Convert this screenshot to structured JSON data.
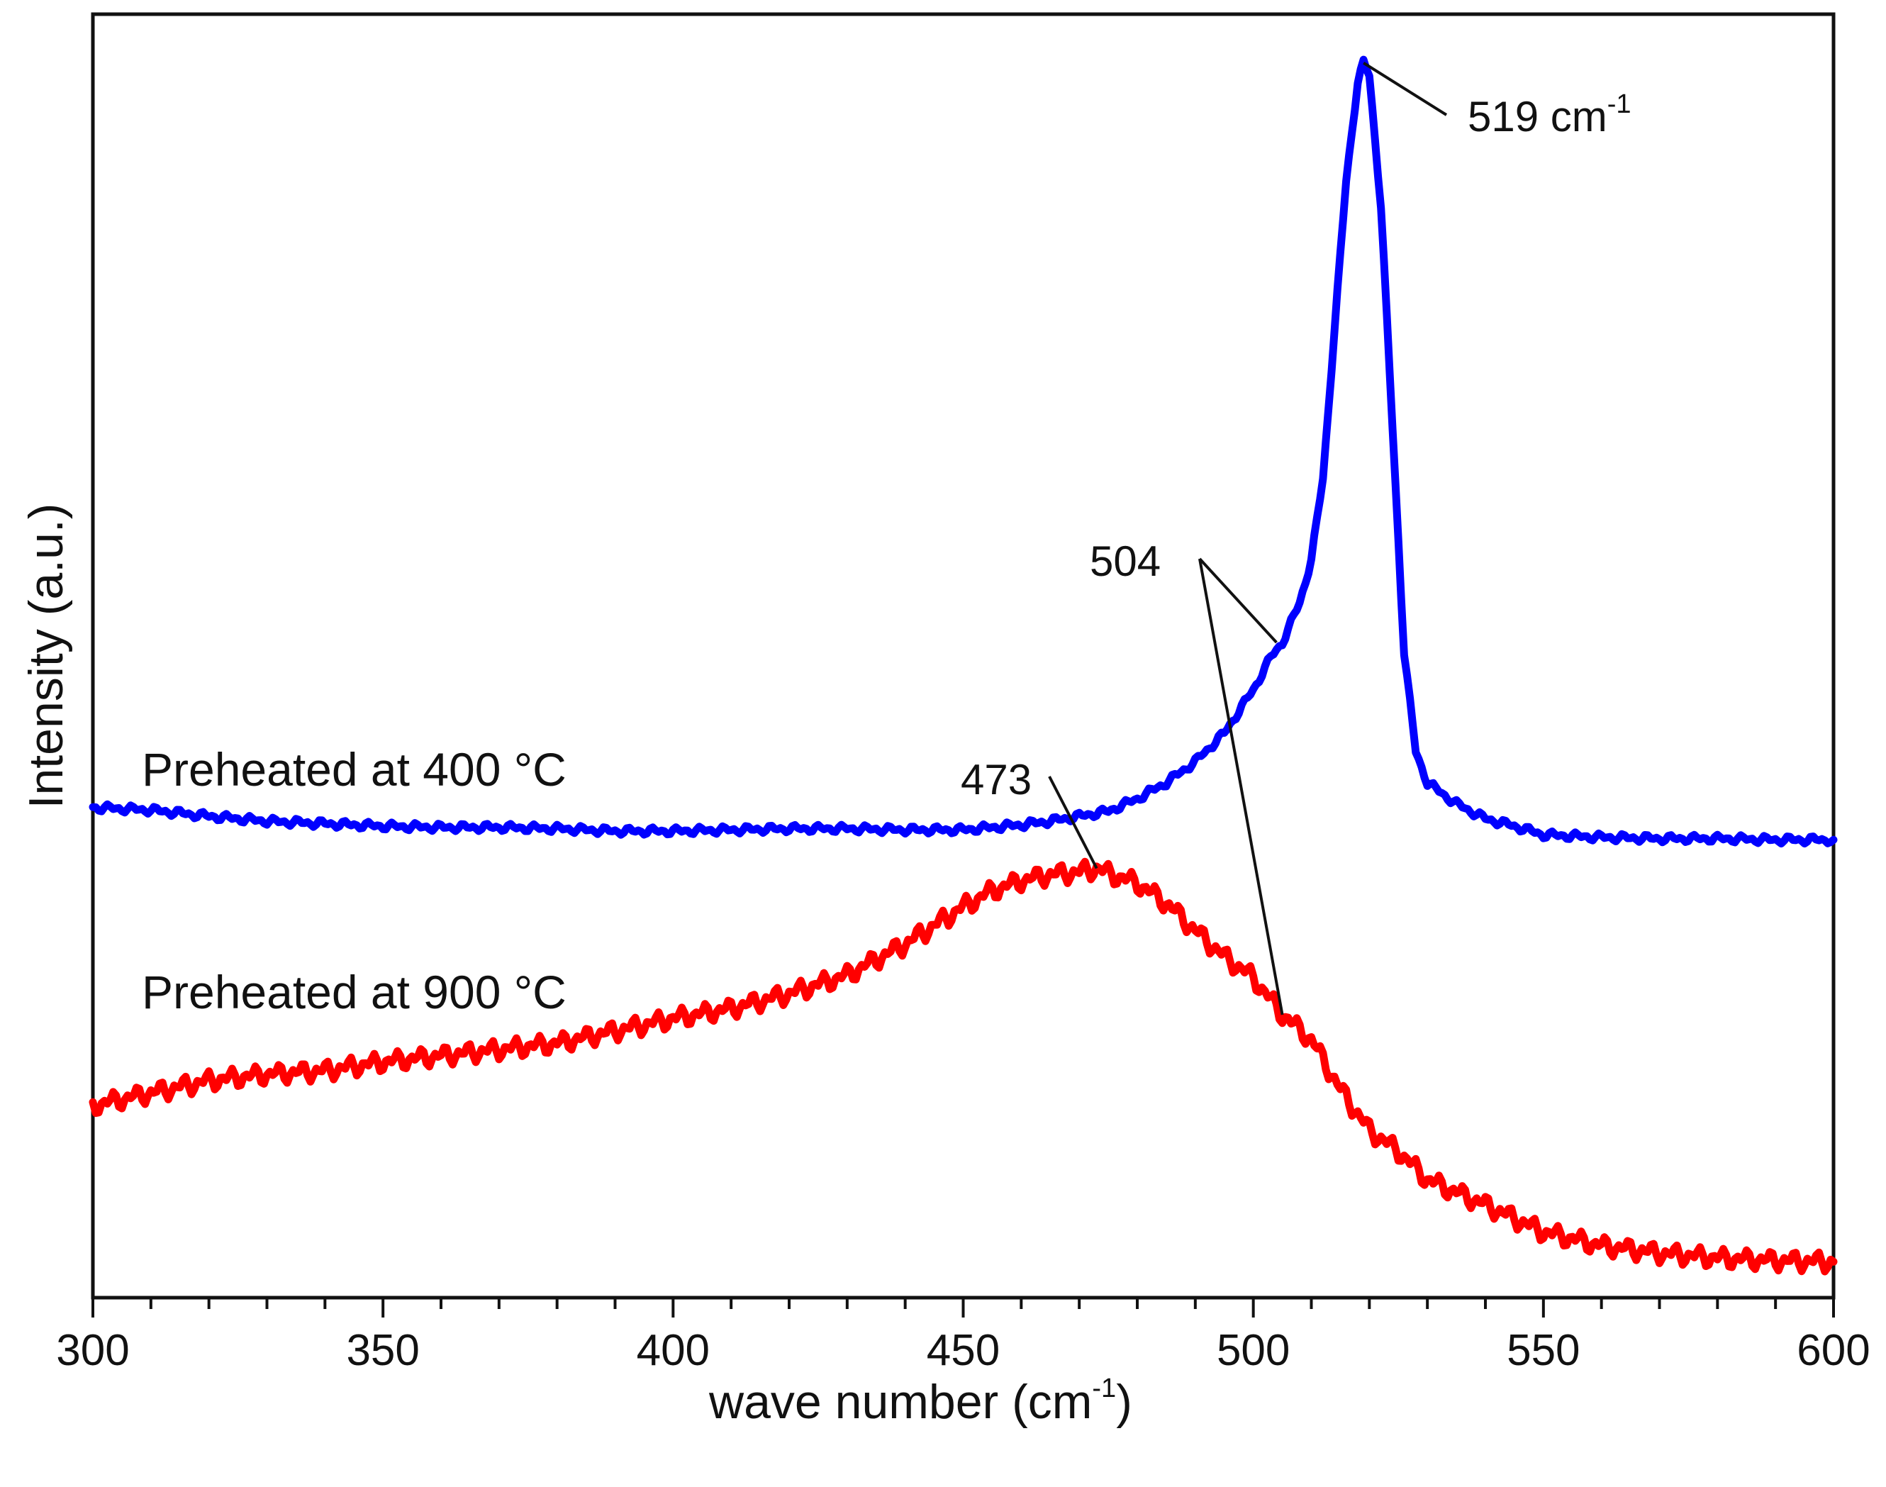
{
  "chart_data": {
    "type": "line",
    "title": "",
    "xlabel": "wave number (cm",
    "xlabel_sup": "-1",
    "xlabel_suffix": ")",
    "ylabel": "Intensity (a.u.)",
    "xlim": [
      300,
      600
    ],
    "ylim": [
      0,
      100
    ],
    "x_ticks": [
      "300",
      "350",
      "400",
      "450",
      "500",
      "550",
      "600"
    ],
    "grid": false,
    "series": [
      {
        "name": "Preheated at 400 °C",
        "label": "Preheated at 400 °C",
        "color": "#0000ff",
        "x": [
          300,
          310,
          320,
          330,
          340,
          350,
          360,
          370,
          380,
          390,
          400,
          410,
          420,
          430,
          440,
          450,
          455,
          460,
          465,
          470,
          475,
          480,
          485,
          490,
          495,
          500,
          503,
          505,
          508,
          510,
          512,
          514,
          516,
          518,
          519,
          520,
          522,
          524,
          526,
          528,
          530,
          535,
          540,
          545,
          550,
          560,
          570,
          580,
          590,
          600
        ],
        "y": [
          39.5,
          39.3,
          38.8,
          38.4,
          38.2,
          38.0,
          37.9,
          37.9,
          37.8,
          37.6,
          37.6,
          37.7,
          37.8,
          37.8,
          37.7,
          37.7,
          37.9,
          38.1,
          38.4,
          38.8,
          39.2,
          40.2,
          41.5,
          43.2,
          45.5,
          49.0,
          51.6,
          52.8,
          56.0,
          59.5,
          66.0,
          78.0,
          90.0,
          98.0,
          99.5,
          98.5,
          88.0,
          70.0,
          52.0,
          44.0,
          41.5,
          39.8,
          38.6,
          38.0,
          37.3,
          37.1,
          37.0,
          37.0,
          36.9,
          36.9
        ]
      },
      {
        "name": "Preheated at 900 °C",
        "label": "Preheated at 900 °C",
        "color": "#ff0000",
        "x": [
          300,
          310,
          320,
          330,
          340,
          350,
          360,
          370,
          380,
          390,
          400,
          410,
          420,
          430,
          440,
          450,
          455,
          460,
          465,
          470,
          473,
          475,
          480,
          485,
          490,
          495,
          500,
          505,
          510,
          515,
          520,
          525,
          530,
          540,
          550,
          560,
          570,
          580,
          590,
          600
        ],
        "y": [
          15.5,
          16.5,
          17.5,
          18.0,
          18.3,
          19.0,
          19.5,
          20.0,
          20.5,
          21.5,
          22.5,
          23.3,
          24.5,
          26.0,
          28.5,
          31.5,
          32.8,
          33.6,
          34.1,
          34.3,
          34.6,
          34.2,
          33.4,
          31.8,
          29.6,
          27.5,
          25.8,
          22.8,
          20.8,
          16.8,
          13.5,
          11.8,
          9.5,
          7.5,
          5.3,
          4.2,
          3.6,
          3.2,
          3.0,
          2.9
        ]
      }
    ],
    "annotations": [
      {
        "text": "519 cm",
        "sup": "-1",
        "x": 519,
        "y": 99.5,
        "series": "Preheated at 400 °C"
      },
      {
        "text": "504",
        "x": 504,
        "y": 52.8,
        "series": "Preheated at 400 °C"
      },
      {
        "text": "504",
        "x": 505,
        "y": 22.8,
        "series": "Preheated at 900 °C"
      },
      {
        "text": "473",
        "x": 473,
        "y": 34.6,
        "series": "Preheated at 900 °C"
      }
    ]
  }
}
